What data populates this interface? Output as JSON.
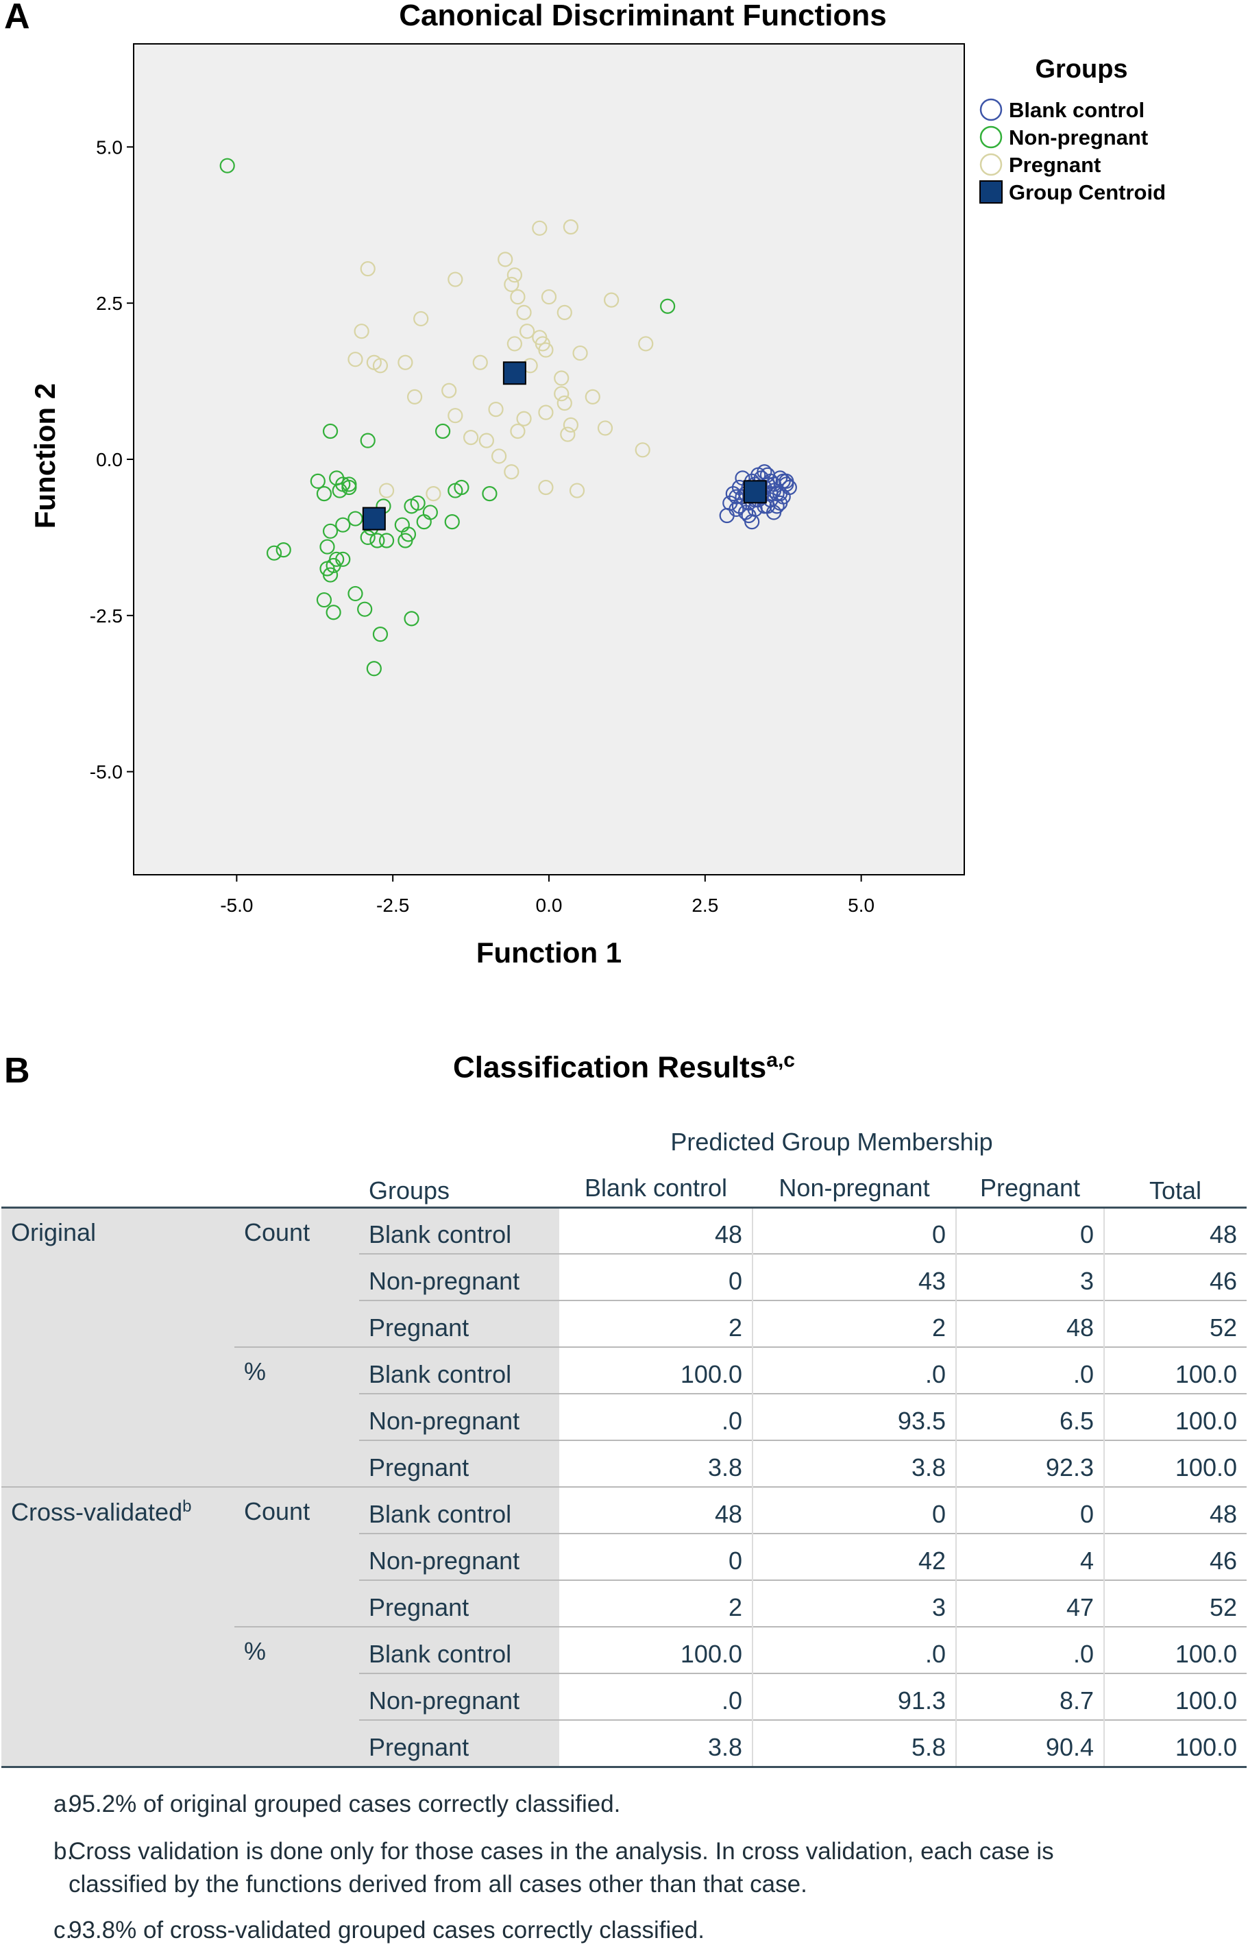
{
  "panel_a": {
    "letter": "A",
    "chart_data": {
      "type": "scatter",
      "title": "Canonical Discriminant Functions",
      "xlabel": "Function 1",
      "ylabel": "Function 2",
      "xlim": [
        -6.65,
        6.65
      ],
      "ylim": [
        -6.65,
        6.65
      ],
      "xticks": [
        "-5.0",
        "-2.5",
        "0.0",
        "2.5",
        "5.0"
      ],
      "yticks": [
        "5.0",
        "2.5",
        "0.0",
        "-2.5",
        "-5.0"
      ],
      "xtick_values": [
        -5.0,
        -2.5,
        0.0,
        2.5,
        5.0
      ],
      "ytick_values": [
        5.0,
        2.5,
        0.0,
        -2.5,
        -5.0
      ],
      "grid": false,
      "legend": {
        "title": "Groups",
        "position": "right",
        "entries": [
          "Blank control",
          "Non-pregnant",
          "Pregnant",
          "Group Centroid"
        ]
      },
      "colors": {
        "Blank control": "#3d55a8",
        "Non-pregnant": "#33b03a",
        "Pregnant": "#d8d4a4",
        "Group Centroid": "#0e3d78",
        "plot_bg": "#efefef"
      },
      "series": [
        {
          "name": "Blank control",
          "marker": "circle-open",
          "points": [
            [
              3.1,
              -0.6
            ],
            [
              3.2,
              -0.7
            ],
            [
              3.3,
              -0.5
            ],
            [
              3.4,
              -0.6
            ],
            [
              3.5,
              -0.4
            ],
            [
              3.6,
              -0.5
            ],
            [
              3.7,
              -0.7
            ],
            [
              3.8,
              -0.4
            ],
            [
              3.0,
              -0.8
            ],
            [
              2.9,
              -0.7
            ],
            [
              2.85,
              -0.9
            ],
            [
              3.05,
              -0.45
            ],
            [
              3.15,
              -0.55
            ],
            [
              3.25,
              -0.35
            ],
            [
              3.35,
              -0.25
            ],
            [
              3.45,
              -0.45
            ],
            [
              3.55,
              -0.65
            ],
            [
              3.65,
              -0.55
            ],
            [
              3.75,
              -0.35
            ],
            [
              3.85,
              -0.45
            ],
            [
              3.2,
              -0.9
            ],
            [
              3.3,
              -0.8
            ],
            [
              3.4,
              -0.3
            ],
            [
              3.5,
              -0.75
            ],
            [
              3.6,
              -0.85
            ],
            [
              3.7,
              -0.3
            ],
            [
              3.0,
              -0.6
            ],
            [
              3.1,
              -0.3
            ],
            [
              3.25,
              -1.0
            ],
            [
              3.35,
              -0.65
            ],
            [
              3.45,
              -0.2
            ],
            [
              3.55,
              -0.35
            ],
            [
              3.65,
              -0.75
            ],
            [
              3.75,
              -0.6
            ],
            [
              2.95,
              -0.55
            ],
            [
              3.05,
              -0.75
            ],
            [
              3.15,
              -0.85
            ],
            [
              3.3,
              -0.4
            ],
            [
              3.4,
              -0.55
            ],
            [
              3.5,
              -0.25
            ],
            [
              3.6,
              -0.4
            ],
            [
              3.7,
              -0.55
            ],
            [
              3.8,
              -0.35
            ],
            [
              3.2,
              -0.45
            ],
            [
              3.3,
              -0.65
            ],
            [
              3.45,
              -0.75
            ],
            [
              3.55,
              -0.55
            ],
            [
              3.35,
              -0.45
            ]
          ]
        },
        {
          "name": "Non-pregnant",
          "marker": "circle-open",
          "points": [
            [
              -5.15,
              4.7
            ],
            [
              1.9,
              2.45
            ],
            [
              -3.5,
              0.45
            ],
            [
              -2.9,
              0.3
            ],
            [
              -1.7,
              0.45
            ],
            [
              -3.7,
              -0.35
            ],
            [
              -3.4,
              -0.3
            ],
            [
              -3.3,
              -0.4
            ],
            [
              -3.6,
              -0.55
            ],
            [
              -3.2,
              -0.45
            ],
            [
              -3.35,
              -0.5
            ],
            [
              -1.4,
              -0.45
            ],
            [
              -1.5,
              -0.5
            ],
            [
              -0.95,
              -0.55
            ],
            [
              -2.65,
              -0.75
            ],
            [
              -2.2,
              -0.75
            ],
            [
              -2.1,
              -0.7
            ],
            [
              -1.9,
              -0.85
            ],
            [
              -3.1,
              -0.95
            ],
            [
              -3.3,
              -1.05
            ],
            [
              -2.35,
              -1.05
            ],
            [
              -2.0,
              -1.0
            ],
            [
              -1.55,
              -1.0
            ],
            [
              -3.5,
              -1.15
            ],
            [
              -2.25,
              -1.2
            ],
            [
              -2.3,
              -1.3
            ],
            [
              -2.6,
              -1.3
            ],
            [
              -2.75,
              -1.3
            ],
            [
              -2.9,
              -1.25
            ],
            [
              -3.55,
              -1.4
            ],
            [
              -4.25,
              -1.45
            ],
            [
              -4.4,
              -1.5
            ],
            [
              -3.3,
              -1.6
            ],
            [
              -3.4,
              -1.6
            ],
            [
              -3.45,
              -1.7
            ],
            [
              -3.55,
              -1.75
            ],
            [
              -3.5,
              -1.85
            ],
            [
              -3.1,
              -2.15
            ],
            [
              -3.6,
              -2.25
            ],
            [
              -2.95,
              -2.4
            ],
            [
              -3.45,
              -2.45
            ],
            [
              -2.2,
              -2.55
            ],
            [
              -2.7,
              -2.8
            ],
            [
              -2.8,
              -3.35
            ],
            [
              -2.85,
              -1.1
            ],
            [
              -3.2,
              -0.4
            ]
          ]
        },
        {
          "name": "Pregnant",
          "marker": "circle-open",
          "points": [
            [
              -0.15,
              3.7
            ],
            [
              0.35,
              3.72
            ],
            [
              -0.7,
              3.2
            ],
            [
              -0.55,
              2.95
            ],
            [
              -0.6,
              2.8
            ],
            [
              -2.9,
              3.05
            ],
            [
              -1.5,
              2.88
            ],
            [
              -0.5,
              2.6
            ],
            [
              0.0,
              2.6
            ],
            [
              1.0,
              2.55
            ],
            [
              -0.4,
              2.35
            ],
            [
              0.25,
              2.35
            ],
            [
              -2.05,
              2.25
            ],
            [
              -3.0,
              2.05
            ],
            [
              -0.35,
              2.05
            ],
            [
              -0.15,
              1.95
            ],
            [
              -0.55,
              1.85
            ],
            [
              -0.1,
              1.85
            ],
            [
              -0.05,
              1.75
            ],
            [
              1.55,
              1.85
            ],
            [
              0.5,
              1.7
            ],
            [
              -3.1,
              1.6
            ],
            [
              -2.8,
              1.55
            ],
            [
              -2.3,
              1.55
            ],
            [
              -1.1,
              1.55
            ],
            [
              -2.7,
              1.5
            ],
            [
              -0.3,
              1.5
            ],
            [
              0.2,
              1.3
            ],
            [
              -1.6,
              1.1
            ],
            [
              0.2,
              1.05
            ],
            [
              -2.15,
              1.0
            ],
            [
              0.7,
              1.0
            ],
            [
              0.25,
              0.9
            ],
            [
              -0.85,
              0.8
            ],
            [
              -1.5,
              0.7
            ],
            [
              -0.05,
              0.75
            ],
            [
              -0.4,
              0.65
            ],
            [
              0.35,
              0.55
            ],
            [
              0.9,
              0.5
            ],
            [
              -0.5,
              0.45
            ],
            [
              0.3,
              0.4
            ],
            [
              -1.25,
              0.35
            ],
            [
              -1.0,
              0.3
            ],
            [
              1.5,
              0.15
            ],
            [
              -0.8,
              0.05
            ],
            [
              -0.6,
              -0.2
            ],
            [
              -0.05,
              -0.45
            ],
            [
              0.45,
              -0.5
            ],
            [
              -2.6,
              -0.5
            ],
            [
              -1.85,
              -0.55
            ],
            [
              3.3,
              -0.4
            ],
            [
              3.6,
              -0.85
            ]
          ]
        },
        {
          "name": "Group Centroid",
          "marker": "square-filled",
          "points": [
            [
              3.3,
              -0.52
            ],
            [
              -2.8,
              -0.95
            ],
            [
              -0.55,
              1.38
            ]
          ]
        }
      ]
    }
  },
  "panel_b": {
    "letter": "B",
    "title": "Classification Results",
    "title_superscript": "a,c",
    "header": {
      "predicted_group_membership": "Predicted Group Membership",
      "groups": "Groups",
      "blank_control": "Blank control",
      "non_pregnant": "Non-pregnant",
      "pregnant": "Pregnant",
      "total": "Total"
    },
    "sections": {
      "original": "Original",
      "cross_validated": "Cross-validated",
      "cross_validated_sup": "b",
      "count": "Count",
      "percent": "%"
    },
    "rows": [
      {
        "group": "Blank control",
        "blank": "48",
        "nonpreg": "0",
        "preg": "0",
        "total": "48"
      },
      {
        "group": "Non-pregnant",
        "blank": "0",
        "nonpreg": "43",
        "preg": "3",
        "total": "46"
      },
      {
        "group": "Pregnant",
        "blank": "2",
        "nonpreg": "2",
        "preg": "48",
        "total": "52"
      },
      {
        "group": "Blank control",
        "blank": "100.0",
        "nonpreg": ".0",
        "preg": ".0",
        "total": "100.0"
      },
      {
        "group": "Non-pregnant",
        "blank": ".0",
        "nonpreg": "93.5",
        "preg": "6.5",
        "total": "100.0"
      },
      {
        "group": "Pregnant",
        "blank": "3.8",
        "nonpreg": "3.8",
        "preg": "92.3",
        "total": "100.0"
      },
      {
        "group": "Blank control",
        "blank": "48",
        "nonpreg": "0",
        "preg": "0",
        "total": "48"
      },
      {
        "group": "Non-pregnant",
        "blank": "0",
        "nonpreg": "42",
        "preg": "4",
        "total": "46"
      },
      {
        "group": "Pregnant",
        "blank": "2",
        "nonpreg": "3",
        "preg": "47",
        "total": "52"
      },
      {
        "group": "Blank control",
        "blank": "100.0",
        "nonpreg": ".0",
        "preg": ".0",
        "total": "100.0"
      },
      {
        "group": "Non-pregnant",
        "blank": ".0",
        "nonpreg": "91.3",
        "preg": "8.7",
        "total": "100.0"
      },
      {
        "group": "Pregnant",
        "blank": "3.8",
        "nonpreg": "5.8",
        "preg": "90.4",
        "total": "100.0"
      }
    ],
    "footnotes": {
      "a_label": "a.",
      "a_text": "95.2% of original grouped cases correctly classified.",
      "b_label": "b.",
      "b_text_1": "Cross validation is done only for those cases in the analysis. In cross validation, each case is",
      "b_text_2": "classified by the functions derived from all cases other than that case.",
      "c_label": "c.",
      "c_text": "93.8% of cross-validated grouped cases correctly classified."
    }
  }
}
